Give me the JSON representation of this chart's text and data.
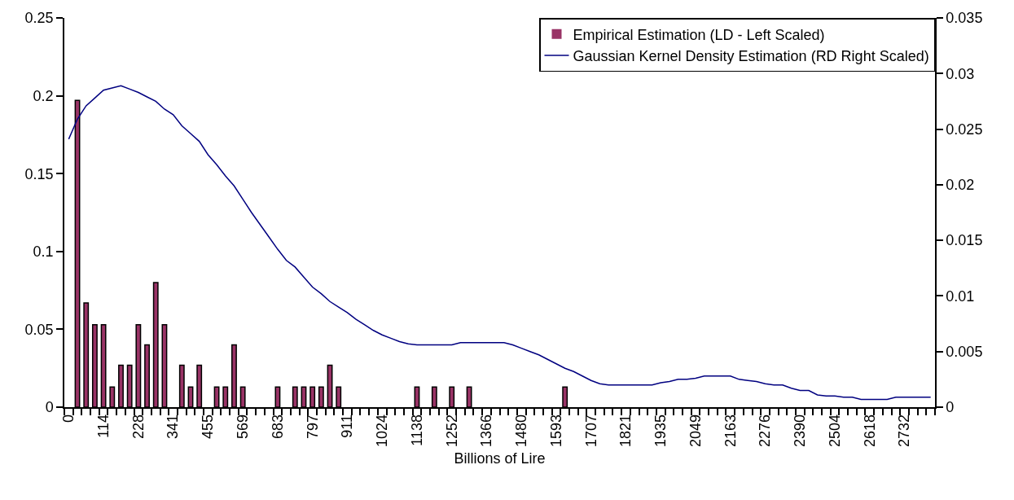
{
  "chart_data": {
    "type": "bar",
    "xlabel": "Billions of Lire",
    "categories": [
      "0",
      null,
      null,
      null,
      "114",
      null,
      null,
      null,
      "228",
      null,
      null,
      null,
      "341",
      null,
      null,
      null,
      "455",
      null,
      null,
      null,
      "569",
      null,
      null,
      null,
      "683",
      null,
      null,
      null,
      "797",
      null,
      null,
      null,
      "911",
      null,
      null,
      null,
      "1024",
      null,
      null,
      null,
      "1138",
      null,
      null,
      null,
      "1252",
      null,
      null,
      null,
      "1366",
      null,
      null,
      null,
      "1480",
      null,
      null,
      null,
      "1593",
      null,
      null,
      null,
      "1707",
      null,
      null,
      null,
      "1821",
      null,
      null,
      null,
      "1935",
      null,
      null,
      null,
      "2049",
      null,
      null,
      null,
      "2163",
      null,
      null,
      null,
      "2276",
      null,
      null,
      null,
      "2390",
      null,
      null,
      null,
      "2504",
      null,
      null,
      null,
      "2618",
      null,
      null,
      null,
      "2732",
      null,
      null,
      null
    ],
    "series": [
      {
        "name": "Empirical Estimation (LD - Left Scaled)",
        "color": "#993366",
        "values": [
          0,
          0.197,
          0.067,
          0.053,
          0.053,
          0.013,
          0.027,
          0.027,
          0.053,
          0.04,
          0.08,
          0.053,
          0,
          0.027,
          0.013,
          0.027,
          0,
          0.013,
          0.013,
          0.04,
          0.013,
          0,
          0,
          0,
          0.013,
          0,
          0.013,
          0.013,
          0.013,
          0.013,
          0.027,
          0.013,
          0,
          0,
          0,
          0,
          0,
          0,
          0,
          0,
          0.013,
          0,
          0.013,
          0,
          0.013,
          0,
          0.013,
          0,
          0,
          0,
          0,
          0,
          0,
          0,
          0,
          0,
          0,
          0.013,
          0,
          0,
          0,
          0,
          0,
          0,
          0,
          0,
          0,
          0,
          0,
          0,
          0,
          0,
          0,
          0,
          0,
          0,
          0,
          0,
          0,
          0,
          0,
          0,
          0,
          0,
          0,
          0,
          0,
          0,
          0,
          0,
          0,
          0,
          0,
          0,
          0,
          0,
          0,
          0,
          0,
          0
        ]
      },
      {
        "name": "Gaussian Kernel Density Estimation (RD Right Scaled)",
        "type": "line",
        "axis": "y2",
        "color": "#000080",
        "values": [
          0.0241,
          0.0259,
          0.0271,
          0.0278,
          0.0285,
          0.0287,
          0.0289,
          0.0286,
          0.0283,
          0.0279,
          0.0275,
          0.0268,
          0.0263,
          0.0253,
          0.0246,
          0.0239,
          0.0227,
          0.0218,
          0.0208,
          0.0199,
          0.0187,
          0.0175,
          0.0164,
          0.0153,
          0.0142,
          0.0132,
          0.0126,
          0.0117,
          0.0108,
          0.0102,
          0.0095,
          0.009,
          0.0085,
          0.0079,
          0.0074,
          0.0069,
          0.0065,
          0.0062,
          0.0059,
          0.0057,
          0.0056,
          0.0056,
          0.0056,
          0.0056,
          0.0056,
          0.0058,
          0.0058,
          0.0058,
          0.0058,
          0.0058,
          0.0058,
          0.0056,
          0.0053,
          0.005,
          0.0047,
          0.0043,
          0.0039,
          0.0035,
          0.0032,
          0.0028,
          0.0024,
          0.0021,
          0.002,
          0.002,
          0.002,
          0.002,
          0.002,
          0.002,
          0.0022,
          0.0023,
          0.0025,
          0.0025,
          0.0026,
          0.0028,
          0.0028,
          0.0028,
          0.0028,
          0.0025,
          0.0024,
          0.0023,
          0.0021,
          0.002,
          0.002,
          0.0017,
          0.0015,
          0.0015,
          0.0011,
          0.001,
          0.001,
          0.0009,
          0.0009,
          0.0007,
          0.0007,
          0.0007,
          0.0007,
          0.0009,
          0.0009,
          0.0009,
          0.0009,
          0.0009
        ]
      }
    ],
    "ylim": [
      0,
      0.25
    ],
    "yticks": [
      0,
      0.05,
      0.1,
      0.15,
      0.2,
      0.25
    ],
    "y2lim": [
      0,
      0.035
    ],
    "y2ticks": [
      0,
      0.005,
      0.01,
      0.015,
      0.02,
      0.025,
      0.03,
      0.035
    ],
    "legend": "top right",
    "marker": "none",
    "line_style": "solid"
  }
}
